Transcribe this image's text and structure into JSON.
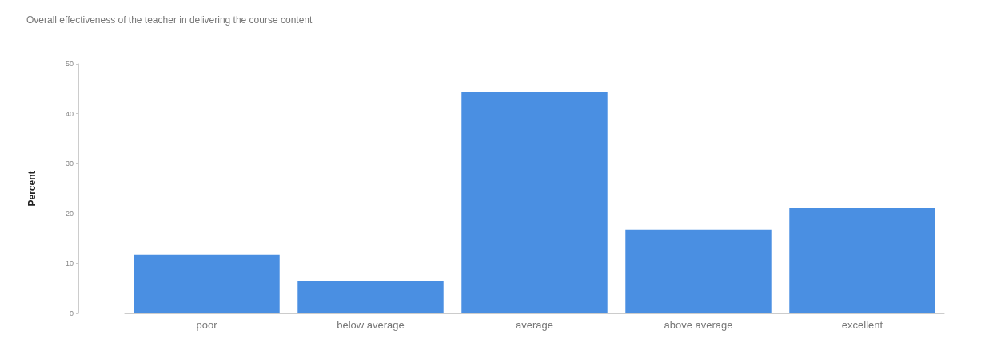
{
  "chart_data": {
    "type": "bar",
    "title": "Overall effectiveness of the teacher in delivering the course content",
    "ylabel": "Percent",
    "categories": [
      "poor",
      "below average",
      "average",
      "above average",
      "excellent"
    ],
    "values": [
      11.7,
      6.4,
      44.4,
      16.8,
      21.1
    ],
    "color": "#4a8fe2",
    "ylim": [
      0,
      50
    ],
    "yticks": [
      0,
      10,
      20,
      30,
      40,
      50
    ],
    "grid": false
  }
}
